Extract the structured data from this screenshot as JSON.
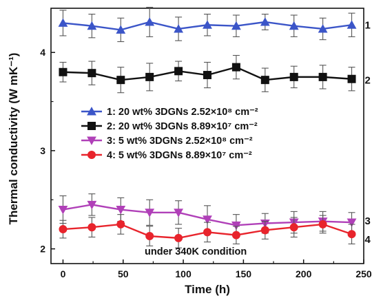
{
  "chart_data": {
    "type": "line",
    "xlabel": "Time (h)",
    "ylabel": "Thermal conductivity (W mK⁻¹)",
    "xlim": [
      -10,
      250
    ],
    "ylim": [
      1.85,
      4.45
    ],
    "xticks": [
      0,
      50,
      100,
      150,
      200,
      250
    ],
    "yticks": [
      2,
      3,
      4
    ],
    "x": [
      0,
      24,
      48,
      72,
      96,
      120,
      144,
      168,
      192,
      216,
      240
    ],
    "annotation": "under 340K condition",
    "legend_position": "center-left",
    "series": [
      {
        "name": "1: 20 wt% 3DGNs 2.52×10⁸ cm⁻²",
        "end_label": "1",
        "color": "#3b55c8",
        "marker": "triangle-up",
        "values": [
          4.3,
          4.27,
          4.23,
          4.31,
          4.24,
          4.28,
          4.27,
          4.31,
          4.27,
          4.24,
          4.28
        ],
        "errors": [
          0.13,
          0.12,
          0.12,
          0.15,
          0.12,
          0.11,
          0.11,
          0.08,
          0.11,
          0.11,
          0.12
        ]
      },
      {
        "name": "2: 20 wt% 3DGNs 8.89×10⁷ cm⁻²",
        "end_label": "2",
        "color": "#111111",
        "marker": "square",
        "values": [
          3.8,
          3.79,
          3.72,
          3.75,
          3.81,
          3.77,
          3.85,
          3.72,
          3.75,
          3.75,
          3.73
        ],
        "errors": [
          0.1,
          0.12,
          0.13,
          0.14,
          0.1,
          0.13,
          0.12,
          0.12,
          0.11,
          0.12,
          0.12
        ]
      },
      {
        "name": "3: 5 wt% 3DGNs 2.52×10⁸ cm⁻²",
        "end_label": "3",
        "color": "#b040b8",
        "marker": "triangle-down",
        "values": [
          2.4,
          2.45,
          2.4,
          2.37,
          2.37,
          2.3,
          2.24,
          2.26,
          2.27,
          2.28,
          2.27
        ],
        "errors": [
          0.14,
          0.11,
          0.12,
          0.13,
          0.12,
          0.14,
          0.11,
          0.1,
          0.11,
          0.1,
          0.1
        ]
      },
      {
        "name": "4: 5 wt% 3DGNs 8.89×10⁷ cm⁻²",
        "end_label": "4",
        "color": "#e8242c",
        "marker": "circle",
        "values": [
          2.2,
          2.22,
          2.25,
          2.13,
          2.11,
          2.17,
          2.14,
          2.19,
          2.22,
          2.25,
          2.15
        ],
        "errors": [
          0.09,
          0.1,
          0.1,
          0.1,
          0.1,
          0.1,
          0.09,
          0.09,
          0.1,
          0.09,
          0.1
        ]
      }
    ]
  }
}
